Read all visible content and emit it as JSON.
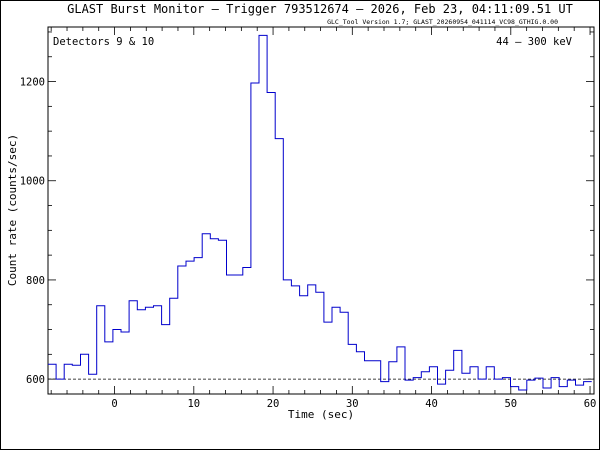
{
  "chart_data": {
    "type": "line",
    "title": "GLAST Burst Monitor  –  Trigger 793512674  –  2026, Feb 23, 04:11:09.51 UT",
    "subtitle": "GLC_Tool Version 1.7; GLAST_20260954_041114_VC98_GTHIG.0.00",
    "xlabel": "Time (sec)",
    "ylabel": "Count rate (counts/sec)",
    "annotation_left": "Detectors 9 & 10",
    "annotation_right": "44 – 300 keV",
    "xlim": [
      -8.4,
      60.5
    ],
    "ylim": [
      570,
      1310
    ],
    "xticks": [
      0,
      10,
      20,
      30,
      40,
      50,
      60
    ],
    "yticks": [
      600,
      800,
      1000,
      1200
    ],
    "xtick_labels": [
      "0",
      "10",
      "20",
      "30",
      "40",
      "50",
      "60"
    ],
    "ytick_labels": [
      "600",
      "800",
      "1000",
      "1200"
    ],
    "background_level": 600,
    "line_color": "#0000cc",
    "bin_width": 1.024,
    "edges": [
      -8.4,
      -7.376,
      -6.352,
      -5.328,
      -4.304,
      -3.28,
      -2.256,
      -1.232,
      -0.208,
      0.816,
      1.84,
      2.864,
      3.888,
      4.912,
      5.936,
      6.96,
      7.984,
      9.008,
      10.032,
      11.056,
      12.08,
      13.104,
      14.128,
      15.152,
      16.176,
      17.2,
      18.224,
      19.248,
      20.272,
      21.296,
      22.32,
      23.344,
      24.368,
      25.392,
      26.416,
      27.44,
      28.464,
      29.488,
      30.512,
      31.536,
      32.56,
      33.584,
      34.608,
      35.632,
      36.656,
      37.68,
      38.704,
      39.728,
      40.752,
      41.776,
      42.8,
      43.824,
      44.848,
      45.872,
      46.896,
      47.92,
      48.944,
      49.968,
      50.992,
      52.016,
      53.04,
      54.064,
      55.088,
      56.112,
      57.136,
      58.16,
      59.184,
      60.208
    ],
    "values": [
      630,
      600,
      630,
      628,
      650,
      610,
      748,
      675,
      700,
      695,
      758,
      740,
      745,
      748,
      710,
      763,
      828,
      838,
      845,
      893,
      883,
      880,
      810,
      810,
      825,
      1197,
      1293,
      1178,
      1085,
      800,
      788,
      768,
      790,
      775,
      715,
      745,
      735,
      670,
      655,
      637,
      637,
      595,
      635,
      665,
      598,
      603,
      615,
      625,
      590,
      618,
      658,
      612,
      625,
      600,
      625,
      600,
      603,
      585,
      578,
      598,
      602,
      582,
      603,
      585,
      598,
      588,
      595
    ]
  }
}
